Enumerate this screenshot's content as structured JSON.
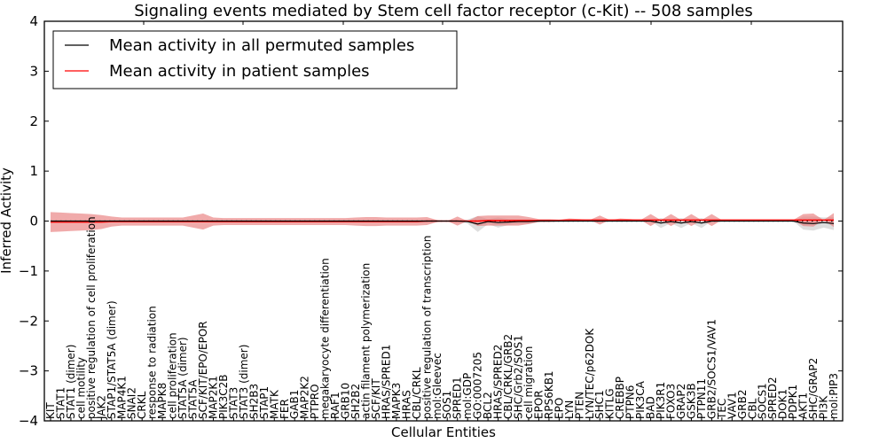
{
  "chart_data": {
    "type": "line",
    "title": "Signaling events mediated by Stem cell factor receptor (c-Kit) -- 508 samples",
    "xlabel": "Cellular Entities",
    "ylabel": "Inferred Activity",
    "ylim": [
      -4,
      4
    ],
    "yticks": [
      -4,
      -3,
      -2,
      -1,
      0,
      1,
      2,
      3,
      4
    ],
    "ytick_labels": [
      "−4",
      "−3",
      "−2",
      "−1",
      "0",
      "1",
      "2",
      "3",
      "4"
    ],
    "grid": false,
    "legend": {
      "placement": "top-left",
      "entries": [
        {
          "label": "Mean activity in all permuted samples",
          "color": "#000000"
        },
        {
          "label": "Mean activity in patient samples",
          "color": "#ff0000"
        }
      ]
    },
    "categories": [
      "KIT",
      "STAT1",
      "STAT1 (dimer)",
      "cell motility",
      "positive regulation of cell proliferation",
      "JAK2",
      "STAP1/STAT5A (dimer)",
      "MAP4K1",
      "SNAI2",
      "CRKL",
      "response to radiation",
      "MAPK8",
      "cell proliferation",
      "STAT5A (dimer)",
      "STAT5A",
      "SCF/KIT/EPO/EPOR",
      "MAP2K1",
      "PIK3C2B",
      "STAT3",
      "STAT3 (dimer)",
      "SH2B3",
      "STAP1",
      "MATK",
      "FER",
      "GAB1",
      "MAP2K2",
      "PTPRO",
      "megakaryocyte differentiation",
      "RAF1",
      "GRB10",
      "SH2B2",
      "actin filament polymerization",
      "SCF/KIT",
      "HRAS/SPRED1",
      "MAPK3",
      "HRAS",
      "CBL/CRKL",
      "positive regulation of transcription",
      "mol:Gleevec",
      "SOS1",
      "SPRED1",
      "mol:GDP",
      "GO:0007205",
      "BCL2",
      "HRAS/SPRED2",
      "CBL/CRKL/GRB2",
      "SHC/Grb2/SOS1",
      "cell migration",
      "EPOR",
      "RPS6KB1",
      "EPO",
      "LYN",
      "PTEN",
      "LYN/TEC/p62DOK",
      "SHC1",
      "KITLG",
      "CREBBP",
      "PTPN6",
      "PIK3CA",
      "BAD",
      "PIK3R1",
      "FOXO3",
      "GRAP2",
      "GSK3B",
      "PTPN11",
      "GRB2/SOCS1/VAV1",
      "TEC",
      "VAV1",
      "GRB2",
      "CBL",
      "SOCS1",
      "SPRED2",
      "DOK1",
      "PDPK1",
      "AKT1",
      "SHC/GRAP2",
      "PI3K",
      "mol:PIP3"
    ],
    "series": [
      {
        "name": "Mean activity in all permuted samples",
        "color": "#000000",
        "band_color": "#c8c8c8",
        "values": [
          0,
          0,
          0,
          0,
          0,
          0,
          0,
          0,
          0,
          0,
          0,
          0,
          0,
          0,
          0,
          0,
          0,
          0,
          0,
          0,
          0,
          0,
          0,
          0,
          0,
          0,
          0,
          0,
          0,
          0,
          0,
          0,
          0,
          0,
          0,
          0,
          0,
          0,
          0,
          0,
          0,
          -0.01,
          -0.06,
          -0.01,
          -0.03,
          -0.02,
          -0.01,
          -0.01,
          0,
          0,
          0,
          0,
          0,
          0,
          0,
          0,
          0,
          0,
          0,
          0,
          -0.04,
          -0.01,
          -0.04,
          -0.01,
          -0.04,
          0,
          0,
          0,
          0,
          0,
          0,
          0,
          0,
          0,
          -0.04,
          -0.05,
          -0.03,
          -0.05
        ],
        "std": [
          0,
          0,
          0,
          0,
          0,
          0,
          0,
          0,
          0,
          0,
          0,
          0,
          0,
          0,
          0,
          0,
          0,
          0,
          0,
          0,
          0,
          0,
          0,
          0,
          0,
          0,
          0,
          0,
          0,
          0,
          0,
          0,
          0,
          0,
          0,
          0,
          0,
          0,
          0,
          0,
          0,
          0.04,
          0.16,
          0.05,
          0.1,
          0.06,
          0.05,
          0.05,
          0.02,
          0,
          0,
          0,
          0,
          0,
          0,
          0,
          0,
          0,
          0,
          0,
          0.1,
          0.03,
          0.1,
          0.03,
          0.1,
          0,
          0,
          0,
          0,
          0,
          0,
          0,
          0,
          0,
          0.13,
          0.14,
          0.1,
          0.13
        ]
      },
      {
        "name": "Mean activity in patient samples",
        "color": "#ff0000",
        "band_color": "#e87c7c",
        "values": [
          -0.02,
          -0.02,
          -0.02,
          -0.02,
          -0.02,
          -0.02,
          -0.01,
          -0.01,
          -0.01,
          -0.01,
          -0.01,
          -0.01,
          -0.01,
          -0.01,
          -0.01,
          -0.01,
          -0.01,
          -0.01,
          -0.01,
          -0.01,
          -0.01,
          -0.01,
          -0.01,
          -0.01,
          -0.01,
          -0.01,
          -0.01,
          -0.01,
          -0.01,
          -0.01,
          -0.01,
          -0.01,
          -0.01,
          -0.01,
          -0.01,
          -0.01,
          -0.01,
          0,
          0,
          0,
          0,
          0,
          0,
          0.01,
          0.01,
          0.01,
          0.01,
          0.01,
          0.01,
          0.01,
          0.01,
          0.02,
          0.02,
          0.02,
          0.02,
          0.02,
          0.02,
          0.02,
          0.02,
          0.02,
          0.02,
          0.02,
          0.02,
          0.02,
          0.02,
          0.02,
          0.02,
          0.02,
          0.02,
          0.02,
          0.02,
          0.02,
          0.02,
          0.02,
          0.02,
          0.02,
          0.02,
          0.02
        ],
        "std": [
          0.2,
          0.19,
          0.18,
          0.17,
          0.16,
          0.14,
          0.1,
          0.08,
          0.08,
          0.08,
          0.08,
          0.08,
          0.08,
          0.08,
          0.12,
          0.16,
          0.08,
          0.07,
          0.07,
          0.07,
          0.07,
          0.07,
          0.07,
          0.07,
          0.07,
          0.07,
          0.07,
          0.07,
          0.07,
          0.07,
          0.08,
          0.09,
          0.09,
          0.08,
          0.08,
          0.08,
          0.08,
          0.08,
          0.02,
          0.0,
          0.09,
          0.0,
          0.1,
          0.1,
          0.1,
          0.1,
          0.1,
          0.07,
          0.03,
          0.03,
          0.02,
          0.03,
          0.02,
          0.0,
          0.09,
          0.0,
          0.03,
          0.02,
          0.0,
          0.12,
          0.0,
          0.12,
          0.0,
          0.12,
          0.0,
          0.12,
          0.0,
          0.0,
          0.0,
          0.0,
          0.0,
          0.0,
          0.0,
          0.0,
          0.12,
          0.13,
          0.0,
          0.14
        ]
      }
    ],
    "permuted_reference": "dotted"
  }
}
